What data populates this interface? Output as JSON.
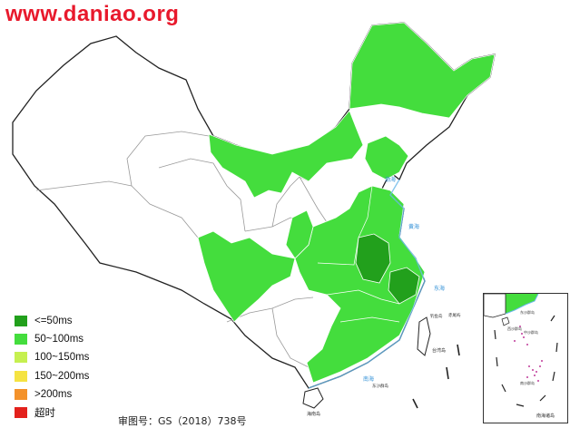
{
  "watermark": "www.daniao.org",
  "approval_number": "审图号：GS（2018）738号",
  "legend": [
    {
      "label": "<=50ms",
      "color": "#22a01c"
    },
    {
      "label": "50~100ms",
      "color": "#44dd3d"
    },
    {
      "label": "100~150ms",
      "color": "#c6f050"
    },
    {
      "label": "150~200ms",
      "color": "#f5e342"
    },
    {
      "label": ">200ms",
      "color": "#f4922a"
    },
    {
      "label": "超时",
      "color": "#e3211c"
    }
  ],
  "colors": {
    "unmeasured": "#ffffff",
    "border": "#9a9a9a",
    "country_border": "#222222",
    "sea_label": "#2f8fd6"
  },
  "sea_labels": [
    "渤海",
    "黄海",
    "东海",
    "南海"
  ],
  "island_labels": [
    "钓鱼岛",
    "赤尾屿",
    "台湾岛",
    "东沙群岛",
    "海南岛"
  ],
  "inset": {
    "title": "南海诸岛",
    "labels": [
      "东沙群岛",
      "西沙群岛",
      "中沙群岛",
      "南沙群岛"
    ]
  }
}
